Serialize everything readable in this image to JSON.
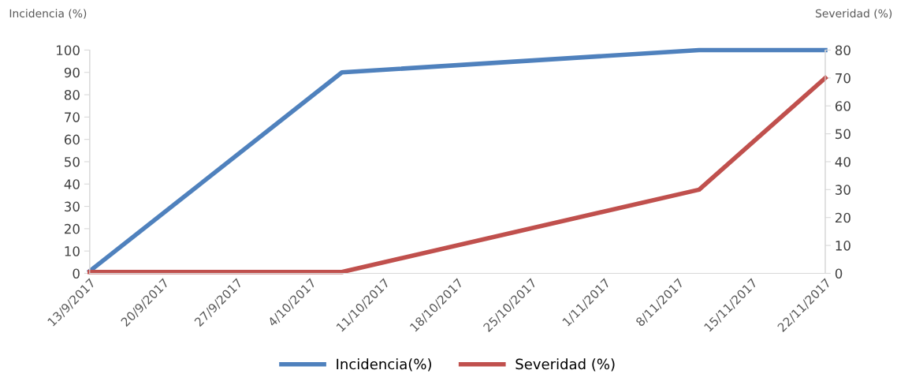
{
  "chart_data": {
    "type": "line",
    "ylabel": "Incidencia (%)",
    "y2label": "Severidad (%)",
    "x": [
      "2017-09-13",
      "2017-10-07",
      "2017-11-10",
      "2017-11-22"
    ],
    "series": [
      {
        "name": "Incidencia(%)",
        "color": "#4f81bd",
        "values": [
          1,
          90,
          100,
          100
        ]
      },
      {
        "name": "Severidad (%)",
        "color": "#c0504d",
        "values": [
          0.5,
          0.5,
          30,
          70
        ],
        "axis": "y2"
      }
    ],
    "xlim": [
      "2017-09-13",
      "2017-11-22"
    ],
    "xticks": [
      {
        "value": "2017-09-13",
        "label": "13/9/2017"
      },
      {
        "value": "2017-09-20",
        "label": "20/9/2017"
      },
      {
        "value": "2017-09-27",
        "label": "27/9/2017"
      },
      {
        "value": "2017-10-04",
        "label": "4/10/2017"
      },
      {
        "value": "2017-10-11",
        "label": "11/10/2017"
      },
      {
        "value": "2017-10-18",
        "label": "18/10/2017"
      },
      {
        "value": "2017-10-25",
        "label": "25/10/2017"
      },
      {
        "value": "2017-11-01",
        "label": "1/11/2017"
      },
      {
        "value": "2017-11-08",
        "label": "8/11/2017"
      },
      {
        "value": "2017-11-15",
        "label": "15/11/2017"
      },
      {
        "value": "2017-11-22",
        "label": "22/11/2017"
      }
    ],
    "ylim": [
      0,
      100
    ],
    "yticks": [
      0,
      10,
      20,
      30,
      40,
      50,
      60,
      70,
      80,
      90,
      100
    ],
    "y2lim": [
      0,
      80
    ],
    "y2ticks": [
      0,
      10,
      20,
      30,
      40,
      50,
      60,
      70,
      80
    ],
    "legend": "bottom",
    "marker": "none",
    "line_style": "solid",
    "grid": false
  }
}
